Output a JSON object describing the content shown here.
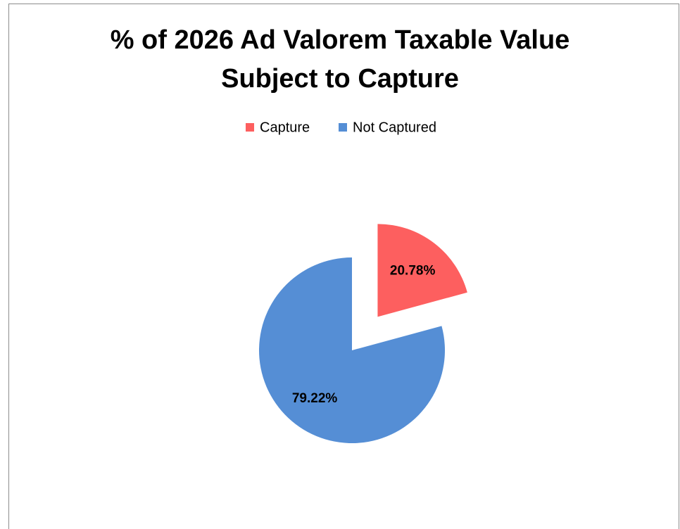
{
  "chart_data": {
    "type": "pie",
    "title": "% of 2026 Ad Valorem Taxable Value Subject to Capture",
    "categories": [
      "Capture",
      "Not Captured"
    ],
    "values": [
      20.78,
      79.22
    ],
    "value_labels": [
      "20.78%",
      "79.22%"
    ],
    "colors": [
      "#fd5f5f",
      "#558ed5"
    ],
    "legend": "top"
  }
}
